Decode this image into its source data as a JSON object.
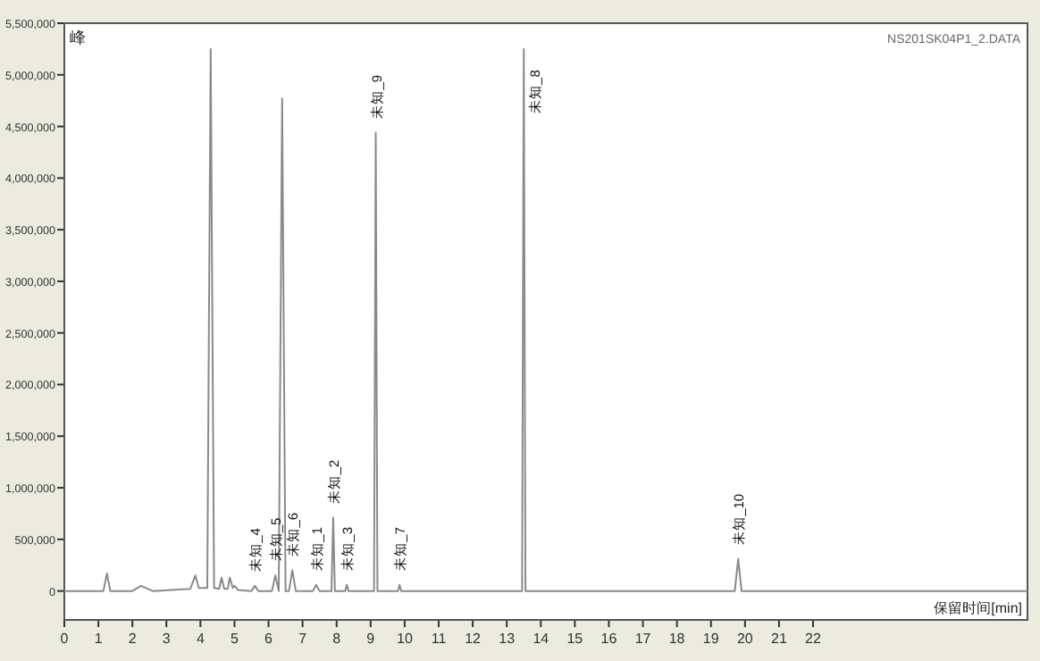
{
  "chart_data": {
    "type": "line",
    "ylabel": "峰",
    "xlabel": "保留时间[min]",
    "annotations": [
      "NS201SK04P1_2.DATA",
      {
        "text": "未知_4",
        "x": 5.6,
        "y": 50000
      },
      {
        "text": "未知_5",
        "x": 6.2,
        "y": 150000
      },
      {
        "text": "未知_6",
        "x": 6.7,
        "y": 200000
      },
      {
        "text": "未知_1",
        "x": 7.4,
        "y": 60000
      },
      {
        "text": "未知_2",
        "x": 7.9,
        "y": 710000
      },
      {
        "text": "未知_3",
        "x": 8.3,
        "y": 60000
      },
      {
        "text": "未知_9",
        "x": 9.15,
        "y": 4440000
      },
      {
        "text": "未知_7",
        "x": 9.85,
        "y": 60000
      },
      {
        "text": "未知_8",
        "x": 13.5,
        "y": 5250000
      },
      {
        "text": "未知_10",
        "x": 19.8,
        "y": 310000
      }
    ],
    "series": [
      {
        "color": "#8a8a8a",
        "x": [
          0,
          1.15,
          1.25,
          1.35,
          2.0,
          2.25,
          2.6,
          3.7,
          3.85,
          3.95,
          4.2,
          4.3,
          4.4,
          4.55,
          4.62,
          4.7,
          4.8,
          4.86,
          4.95,
          5.0,
          5.1,
          5.5,
          5.6,
          5.7,
          6.1,
          6.2,
          6.3,
          6.4,
          6.5,
          6.6,
          6.7,
          6.8,
          7.3,
          7.4,
          7.5,
          7.85,
          7.9,
          7.95,
          8.25,
          8.3,
          8.35,
          9.1,
          9.15,
          9.2,
          9.8,
          9.85,
          9.9,
          13.45,
          13.5,
          13.55,
          14.5,
          19.7,
          19.8,
          19.9,
          28.3
        ],
        "values": [
          0,
          0,
          170000,
          0,
          0,
          50000,
          0,
          20000,
          150000,
          30000,
          30000,
          5250000,
          30000,
          20000,
          130000,
          20000,
          20000,
          130000,
          30000,
          50000,
          10000,
          0,
          50000,
          0,
          0,
          150000,
          0,
          4770000,
          0,
          0,
          200000,
          0,
          0,
          60000,
          0,
          0,
          710000,
          0,
          0,
          60000,
          0,
          0,
          4440000,
          0,
          0,
          60000,
          0,
          0,
          5250000,
          0,
          0,
          0,
          310000,
          0,
          0
        ]
      }
    ],
    "xlim": [
      0,
      28.3
    ],
    "ylim": [
      -280000,
      5500000
    ],
    "xticks": [
      0,
      1,
      2,
      3,
      4,
      5,
      6,
      7,
      8,
      9,
      10,
      11,
      12,
      13,
      14,
      15,
      16,
      17,
      18,
      19,
      20,
      21,
      22
    ],
    "yticks": [
      {
        "value": 0,
        "label": "0"
      },
      {
        "value": 500000,
        "label": "500,000"
      },
      {
        "value": 1000000,
        "label": "1,000,000"
      },
      {
        "value": 1500000,
        "label": "1,500,000"
      },
      {
        "value": 2000000,
        "label": "2,000,000"
      },
      {
        "value": 2500000,
        "label": "2,500,000"
      },
      {
        "value": 3000000,
        "label": "3,000,000"
      },
      {
        "value": 3500000,
        "label": "3,500,000"
      },
      {
        "value": 4000000,
        "label": "4,000,000"
      },
      {
        "value": 4500000,
        "label": "4,500,000"
      },
      {
        "value": 5000000,
        "label": "5,000,000"
      },
      {
        "value": 5500000,
        "label": "5,500,000"
      }
    ],
    "marker": "none",
    "line_style": "solid",
    "grid": false
  }
}
